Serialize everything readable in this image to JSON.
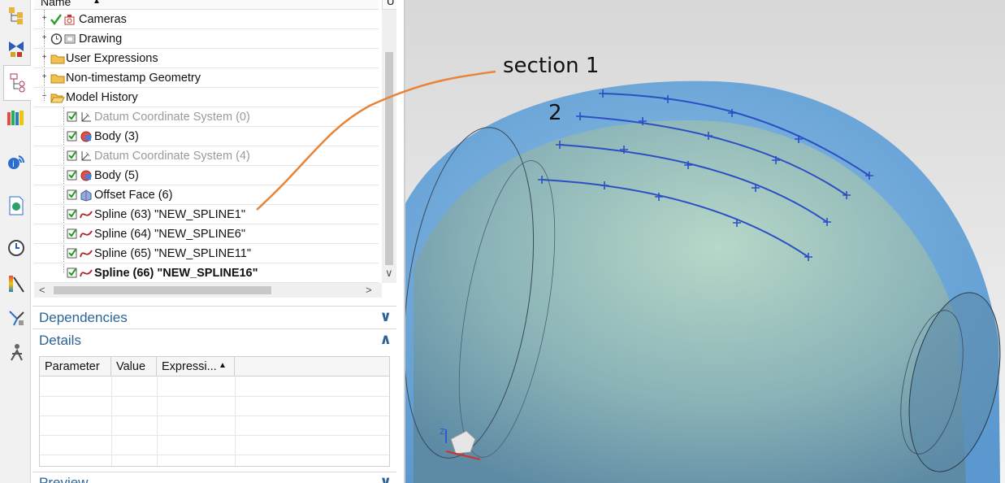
{
  "tree": {
    "column_name": "Name",
    "column_up": "U",
    "nodes": [
      {
        "label": "Cameras",
        "dim": false,
        "bold": false
      },
      {
        "label": "Drawing",
        "dim": false,
        "bold": false
      },
      {
        "label": "User Expressions",
        "dim": false,
        "bold": false
      },
      {
        "label": "Non-timestamp Geometry",
        "dim": false,
        "bold": false
      },
      {
        "label": "Model History",
        "dim": false,
        "bold": false
      },
      {
        "label": "Datum Coordinate System (0)",
        "dim": true,
        "bold": false
      },
      {
        "label": "Body (3)",
        "dim": false,
        "bold": false
      },
      {
        "label": "Datum Coordinate System (4)",
        "dim": true,
        "bold": false
      },
      {
        "label": "Body (5)",
        "dim": false,
        "bold": false
      },
      {
        "label": "Offset Face (6)",
        "dim": false,
        "bold": false
      },
      {
        "label": "Spline (63) \"NEW_SPLINE1\"",
        "dim": false,
        "bold": false
      },
      {
        "label": "Spline (64) \"NEW_SPLINE6\"",
        "dim": false,
        "bold": false
      },
      {
        "label": "Spline (65) \"NEW_SPLINE11\"",
        "dim": false,
        "bold": false
      },
      {
        "label": "Spline (66) \"NEW_SPLINE16\"",
        "dim": false,
        "bold": true
      }
    ]
  },
  "sections": {
    "dependencies": "Dependencies",
    "details": "Details",
    "preview": "Preview"
  },
  "details_table": {
    "columns": [
      "Parameter",
      "Value",
      "Expressi..."
    ]
  },
  "annotations": {
    "section_label": "section 1",
    "number_label": "2"
  },
  "colors": {
    "accent": "#2a6496",
    "shell_blue": "#6aa8d8",
    "spline_blue": "#2c4fc4",
    "annotation_line": "#e8843a"
  }
}
